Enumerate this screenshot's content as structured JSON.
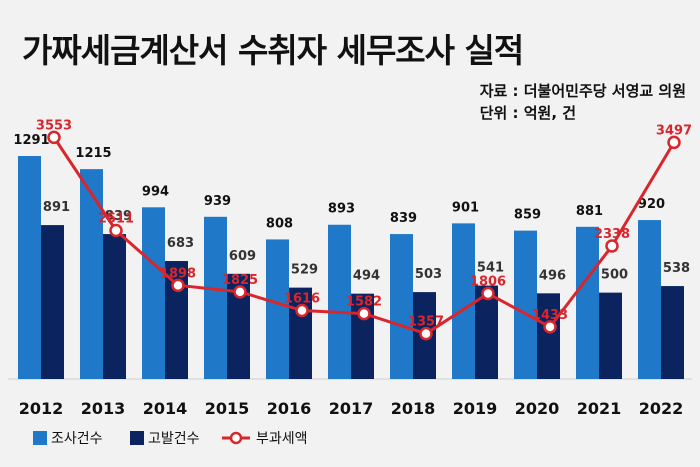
{
  "title": "가짜세금계산서 수취자 세무조사 실적",
  "source": {
    "line1": "자료 : 더불어민주당 서영교 의원",
    "line2": "단위 : 억원, 건"
  },
  "colors": {
    "investigation": "#1f78c8",
    "accusation": "#0b2460",
    "penalty": "#d9262c",
    "label": "#333333"
  },
  "chart_data": {
    "type": "bar",
    "categories": [
      "2012",
      "2013",
      "2014",
      "2015",
      "2016",
      "2017",
      "2018",
      "2019",
      "2020",
      "2021",
      "2022"
    ],
    "series": [
      {
        "name": "조사건수",
        "type": "bar",
        "values": [
          1291,
          1215,
          994,
          939,
          808,
          893,
          839,
          901,
          859,
          881,
          920
        ]
      },
      {
        "name": "고발건수",
        "type": "bar",
        "values": [
          891,
          839,
          683,
          609,
          529,
          494,
          503,
          541,
          496,
          500,
          538
        ]
      },
      {
        "name": "부과세액",
        "type": "line",
        "values": [
          3553,
          2511,
          1898,
          1825,
          1616,
          1582,
          1357,
          1806,
          1433,
          2338,
          3497
        ]
      }
    ],
    "legend_position": "bottom-left",
    "grid": false
  }
}
